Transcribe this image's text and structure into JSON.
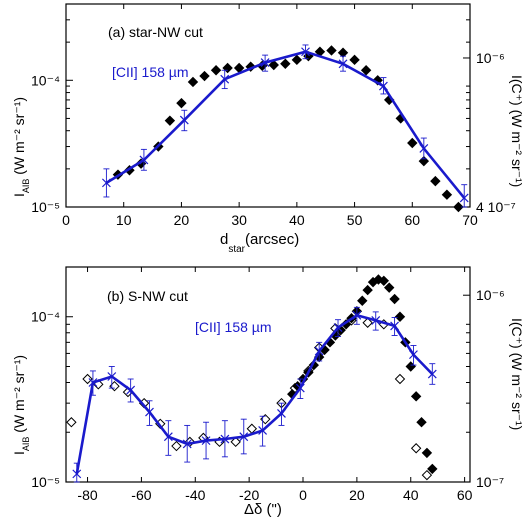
{
  "chart_data": [
    {
      "type": "line",
      "panel_label": "(a) star-NW cut",
      "annotation": "[CII] 158 µm",
      "xlabel_main": "d",
      "xlabel_sub": "star",
      "xlabel_unit": "(arcsec)",
      "ylabel_left_main": "I",
      "ylabel_left_sub": "AIB",
      "ylabel_left_unit": " (W m⁻² sr⁻¹)",
      "ylabel_right": "I(C⁺) (W m⁻² sr⁻¹)",
      "x_ticks": [
        "0",
        "10",
        "20",
        "30",
        "40",
        "50",
        "60",
        "70"
      ],
      "y_left_ticks": [
        "10⁻⁵",
        "10⁻⁴"
      ],
      "y_right_ticks": [
        "10⁻⁶",
        "4 10⁻⁷"
      ],
      "xlim": [
        0,
        70
      ],
      "ylim": [
        1e-05,
        0.0004
      ],
      "yscale": "log",
      "aib_points": {
        "marker": "filled-diamond",
        "x": [
          9,
          11,
          13,
          16,
          18,
          20,
          22,
          24,
          26,
          28,
          30,
          32,
          34,
          36,
          38,
          40,
          42,
          44,
          46,
          48,
          50,
          52,
          54,
          56,
          58,
          60,
          62,
          64,
          66,
          68
        ],
        "y": [
          1.8e-05,
          1.95e-05,
          2.2e-05,
          3e-05,
          4.8e-05,
          6.6e-05,
          9.7e-05,
          0.000108,
          0.00012,
          0.000125,
          0.000125,
          0.000128,
          0.00013,
          0.000132,
          0.000135,
          0.000145,
          0.000155,
          0.000168,
          0.000172,
          0.000165,
          0.000145,
          0.00012,
          0.0001,
          7e-05,
          5e-05,
          3.2e-05,
          2.3e-05,
          1.6e-05,
          1.25e-05,
          1e-05
        ]
      },
      "cii_line": {
        "color": "#1a1acc",
        "x": [
          7,
          13.5,
          20.5,
          27.5,
          34.5,
          41.5,
          48,
          55,
          62,
          69
        ],
        "y": [
          1.55e-05,
          2.35e-05,
          4.85e-05,
          0.000102,
          0.000138,
          0.000168,
          0.000135,
          9e-05,
          2.9e-05,
          1.18e-05
        ],
        "err_lo": [
          1.2e-05,
          1.95e-05,
          4e-05,
          8.6e-05,
          0.000118,
          0.000148,
          0.000118,
          7.8e-05,
          2.4e-05,
          1e-05
        ],
        "err_hi": [
          2e-05,
          2.85e-05,
          5.8e-05,
          0.00012,
          0.000158,
          0.00019,
          0.000155,
          0.000105,
          3.5e-05,
          1.5e-05
        ]
      }
    },
    {
      "type": "line",
      "panel_label": "(b) S-NW cut",
      "annotation": "[CII] 158 µm",
      "xlabel": "Δδ (\")",
      "ylabel_left_main": "I",
      "ylabel_left_sub": "AIB",
      "ylabel_left_unit": " (W m⁻² sr⁻¹)",
      "ylabel_right": "I(C⁺) (W m⁻² sr⁻¹)",
      "x_ticks": [
        "-80",
        "-60",
        "-40",
        "-20",
        "0",
        "20",
        "40",
        "60"
      ],
      "y_left_ticks": [
        "10⁻⁵",
        "10⁻⁴"
      ],
      "y_right_ticks": [
        "10⁻⁶",
        "10⁻⁷"
      ],
      "xlim": [
        -88,
        62
      ],
      "ylim": [
        1e-05,
        0.0002
      ],
      "yscale": "log",
      "aib_filled": {
        "marker": "filled-diamond",
        "x": [
          -4,
          -2,
          0,
          2,
          4,
          6,
          8,
          10,
          12,
          14,
          16,
          18,
          20,
          22,
          24,
          26,
          28,
          30,
          32,
          34,
          36,
          38,
          40,
          42,
          44,
          46,
          48
        ],
        "y": [
          3.4e-05,
          3.8e-05,
          4.2e-05,
          4.6e-05,
          5.1e-05,
          5.7e-05,
          6.3e-05,
          7e-05,
          7.7e-05,
          8.3e-05,
          9e-05,
          9.8e-05,
          0.000108,
          0.000125,
          0.000145,
          0.000162,
          0.000168,
          0.000165,
          0.00015,
          0.000128,
          0.0001,
          7e-05,
          5e-05,
          3.3e-05,
          2.3e-05,
          1.5e-05,
          1.2e-05
        ]
      },
      "aib_open": {
        "marker": "open-diamond",
        "x": [
          -86,
          -80,
          -76,
          -70,
          -65,
          -59,
          -53,
          -47,
          -42,
          -37,
          -31,
          -25,
          -19,
          -14,
          -8,
          -3,
          2,
          6,
          12,
          18,
          24,
          30,
          36,
          42,
          46
        ],
        "y": [
          2.3e-05,
          4.2e-05,
          3.9e-05,
          3.8e-05,
          3.5e-05,
          3e-05,
          2.25e-05,
          1.65e-05,
          1.75e-05,
          1.85e-05,
          1.75e-05,
          1.75e-05,
          2.1e-05,
          2.4e-05,
          3e-05,
          3.7e-05,
          4.7e-05,
          6.5e-05,
          8.5e-05,
          9.5e-05,
          9.2e-05,
          9e-05,
          4.2e-05,
          1.6e-05,
          1.1e-05
        ]
      },
      "cii_line": {
        "color": "#1a1acc",
        "x": [
          -84,
          -78,
          -71,
          -64,
          -57,
          -50,
          -43,
          -36,
          -29,
          -22,
          -15,
          -8,
          -1,
          6,
          13,
          20,
          27,
          34,
          41,
          48
        ],
        "y": [
          1.12e-05,
          4e-05,
          4.35e-05,
          3.6e-05,
          2.65e-05,
          1.88e-05,
          1.7e-05,
          1.78e-05,
          1.82e-05,
          1.88e-05,
          2.05e-05,
          2.6e-05,
          3.7e-05,
          6.2e-05,
          8.6e-05,
          0.000102,
          9.5e-05,
          8.8e-05,
          5.9e-05,
          4.5e-05
        ],
        "err_lo": [
          1e-05,
          3.35e-05,
          3.7e-05,
          3.05e-05,
          2.2e-05,
          1.45e-05,
          1.32e-05,
          1.38e-05,
          1.42e-05,
          1.48e-05,
          1.65e-05,
          2.2e-05,
          3.2e-05,
          5.4e-05,
          7.6e-05,
          9e-05,
          8.3e-05,
          7.7e-05,
          5.1e-05,
          3.9e-05
        ],
        "err_hi": [
          1.3e-05,
          4.7e-05,
          5e-05,
          4.2e-05,
          3.1e-05,
          2.35e-05,
          2.2e-05,
          2.3e-05,
          2.35e-05,
          2.4e-05,
          2.5e-05,
          3e-05,
          4.2e-05,
          7e-05,
          9.6e-05,
          0.000114,
          0.000107,
          9.9e-05,
          6.7e-05,
          5.2e-05
        ]
      }
    }
  ]
}
